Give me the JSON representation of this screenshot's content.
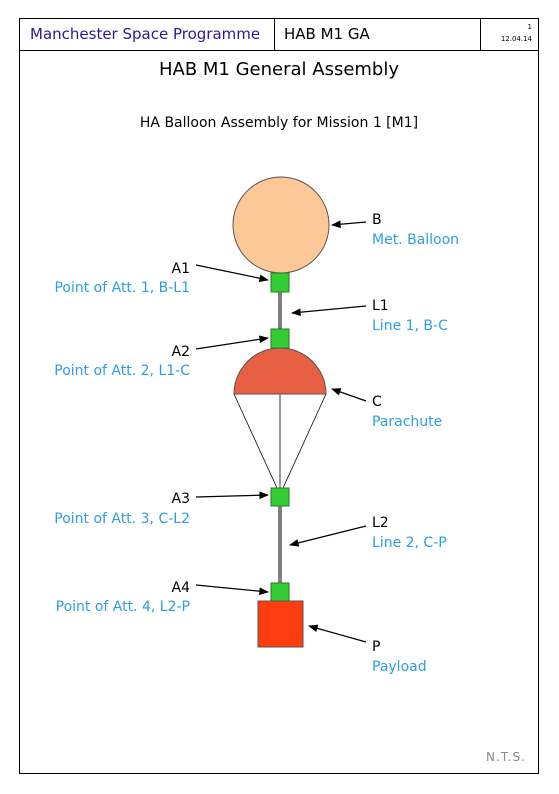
{
  "header": {
    "organisation": "Manchester Space Programme",
    "document_id": "HAB M1 GA",
    "page_number": "1",
    "date": "12.04.14"
  },
  "title": "HAB M1 General Assembly",
  "subtitle": "HA Balloon Assembly for Mission 1 [M1]",
  "footer": {
    "scale_note": "N.T.S."
  },
  "components": {
    "balloon": {
      "code": "B",
      "description": "Met. Balloon",
      "color": "#fdc898"
    },
    "line1": {
      "code": "L1",
      "description": "Line 1, B-C",
      "color": "#808080"
    },
    "parachute": {
      "code": "C",
      "description": "Parachute",
      "color": "#e86043"
    },
    "line2": {
      "code": "L2",
      "description": "Line 2, C-P",
      "color": "#808080"
    },
    "payload": {
      "code": "P",
      "description": "Payload",
      "color": "#ff3d0f"
    }
  },
  "attachments": {
    "a1": {
      "code": "A1",
      "description": "Point of Att. 1, B-L1",
      "color": "#33cc33"
    },
    "a2": {
      "code": "A2",
      "description": "Point of Att. 2, L1-C",
      "color": "#33cc33"
    },
    "a3": {
      "code": "A3",
      "description": "Point of Att. 3, C-L2",
      "color": "#33cc33"
    },
    "a4": {
      "code": "A4",
      "description": "Point of Att. 4, L2-P",
      "color": "#33cc33"
    }
  },
  "colors": {
    "description_text": "#2e9ee0",
    "organisation_text": "#2b1b8f"
  }
}
